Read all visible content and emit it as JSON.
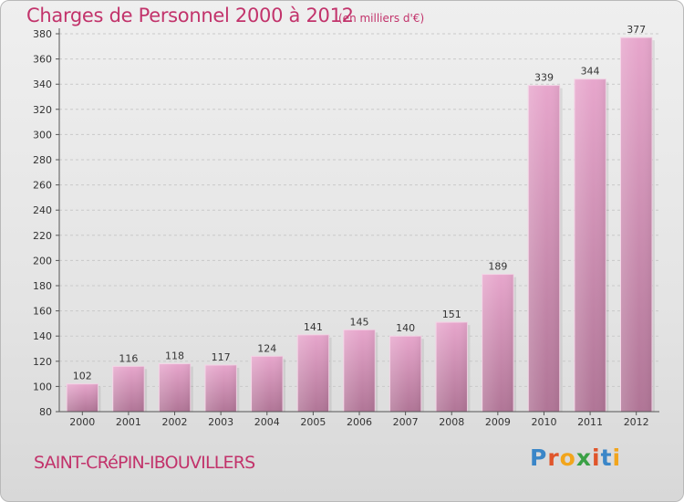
{
  "title": "Charges de Personnel 2000 à 2012",
  "subtitle": "(en milliers d'€)",
  "commune": "SAINT-CRéPIN-IBOUVILLERS",
  "logo": {
    "letters": [
      "P",
      "r",
      "o",
      "x",
      "i",
      "t",
      "i"
    ],
    "colors": [
      "#3a86c8",
      "#e0552b",
      "#f2a51c",
      "#3aa045",
      "#e0552b",
      "#3a86c8",
      "#f2a51c"
    ]
  },
  "colors": {
    "accent": "#c2336b",
    "bar_top": "#e7a6cc",
    "bar_bottom": "#b07596"
  },
  "chart_data": {
    "type": "bar",
    "categories": [
      "2000",
      "2001",
      "2002",
      "2003",
      "2004",
      "2005",
      "2006",
      "2007",
      "2008",
      "2009",
      "2010",
      "2011",
      "2012"
    ],
    "values": [
      102,
      116,
      118,
      117,
      124,
      141,
      145,
      140,
      151,
      189,
      339,
      344,
      377
    ],
    "ylim": [
      80,
      380
    ],
    "yticks": [
      80,
      100,
      120,
      140,
      160,
      180,
      200,
      220,
      240,
      260,
      280,
      300,
      320,
      340,
      360,
      380
    ],
    "grid": true,
    "title": "Charges de Personnel 2000 à 2012",
    "xlabel": "",
    "ylabel": ""
  }
}
